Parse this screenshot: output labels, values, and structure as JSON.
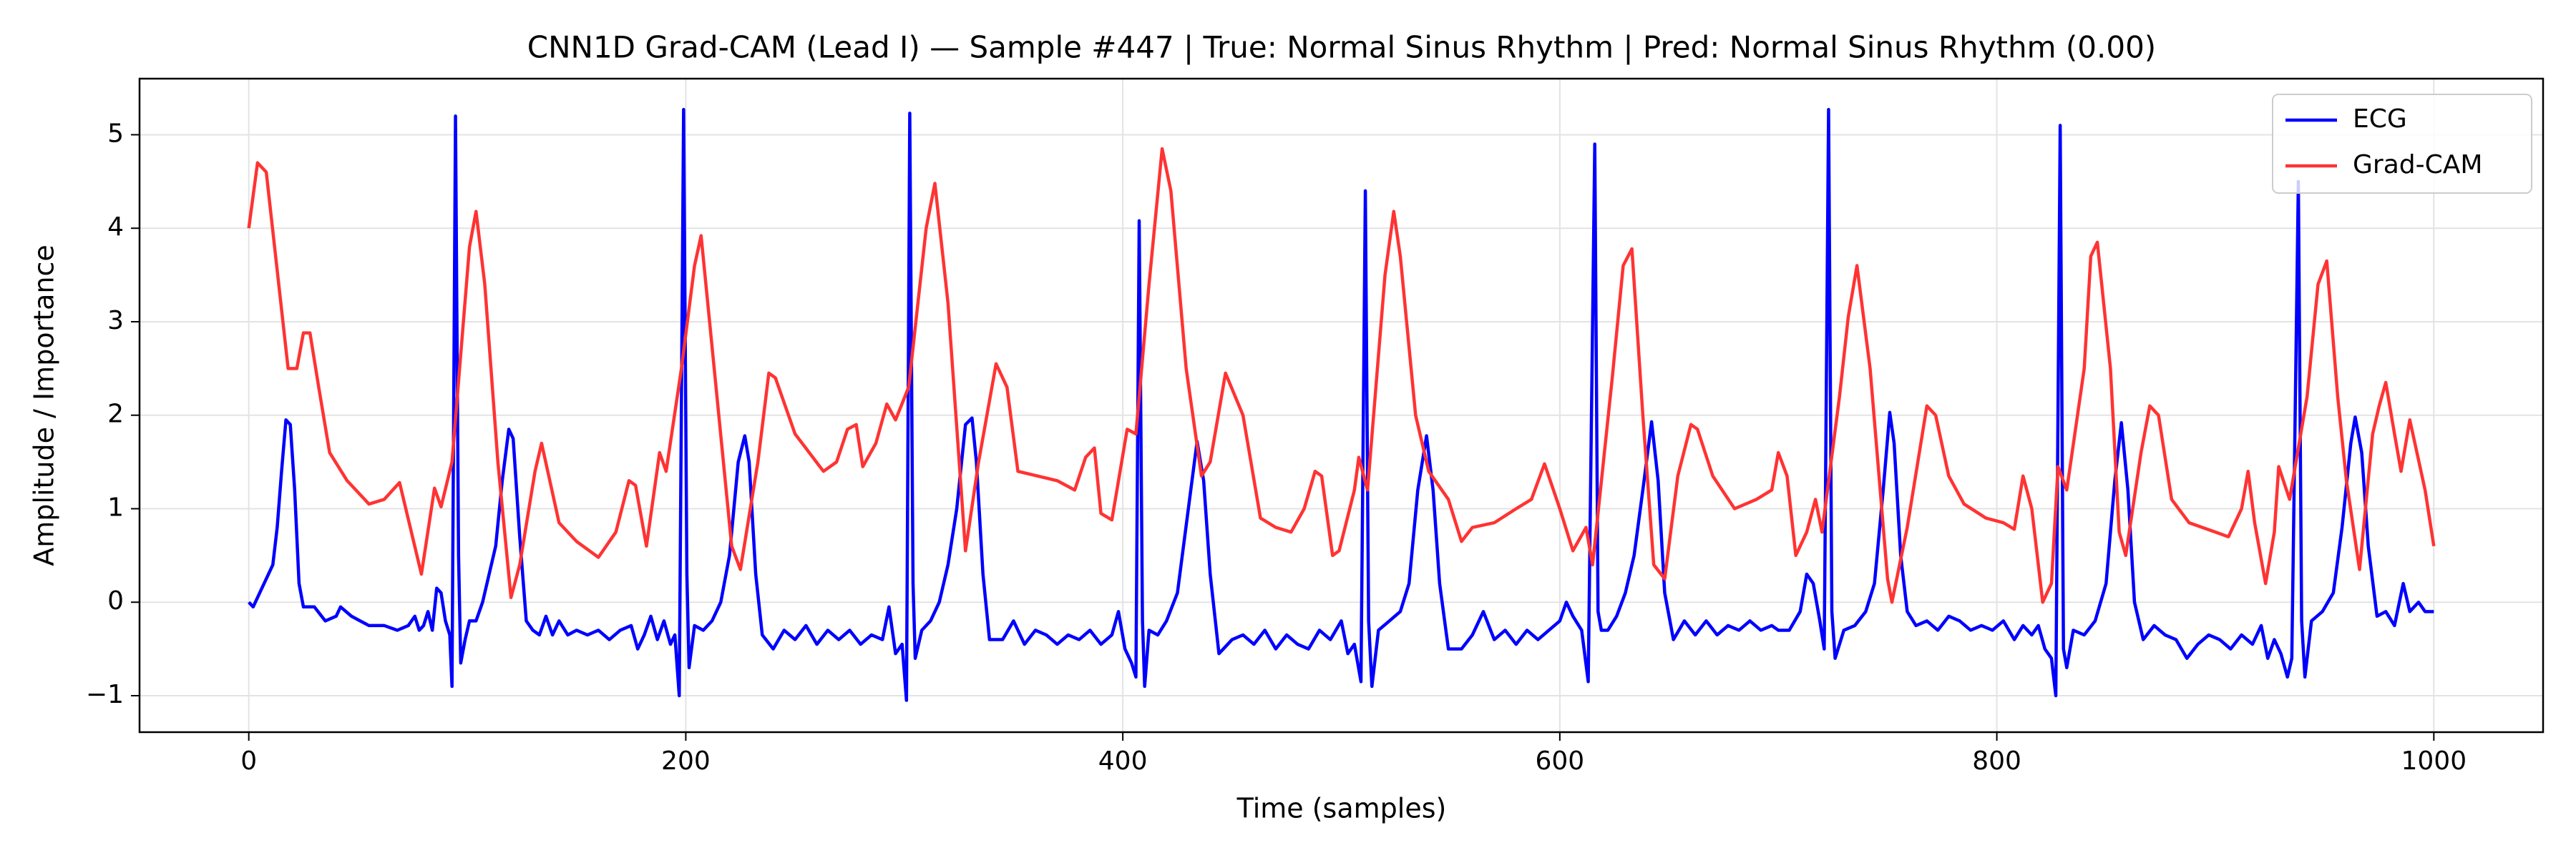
{
  "chart_data": {
    "type": "line",
    "title": "CNN1D Grad-CAM (Lead I) — Sample #447 | True: Normal Sinus Rhythm | Pred: Normal Sinus Rhythm (0.00)",
    "xlabel": "Time (samples)",
    "ylabel": "Amplitude / Importance",
    "xlim": [
      -50,
      1050
    ],
    "ylim": [
      -1.39,
      5.6
    ],
    "xticks": [
      0,
      200,
      400,
      600,
      800,
      1000
    ],
    "yticks": [
      {
        "value": -1,
        "label": "−1"
      },
      0,
      1,
      2,
      3,
      4,
      5
    ],
    "grid": true,
    "legend": "upper right",
    "series": [
      {
        "name": "ECG",
        "color": "#0000ff",
        "x": [
          0,
          2,
          5,
          8,
          11,
          13,
          15,
          17,
          19,
          21,
          23,
          25,
          30,
          35,
          40,
          42,
          47,
          55,
          62,
          68,
          73,
          76,
          78,
          80,
          82,
          84,
          86,
          88,
          90,
          92,
          93,
          94.6,
          96,
          97,
          99,
          101,
          104,
          107,
          110,
          113,
          116,
          119,
          121,
          124,
          127,
          130,
          133,
          136,
          139,
          142,
          146,
          150,
          155,
          160,
          165,
          170,
          175,
          178,
          181,
          184,
          187,
          190,
          193,
          195,
          197,
          199,
          200.5,
          201.5,
          204,
          208,
          212,
          216,
          220,
          224,
          227,
          229,
          232,
          235,
          240,
          245,
          250,
          255,
          260,
          265,
          270,
          275,
          280,
          285,
          290,
          293,
          296,
          299,
          301,
          302.5,
          304,
          305,
          308,
          312,
          316,
          320,
          324,
          328,
          331,
          333,
          336,
          339,
          345,
          350,
          355,
          360,
          365,
          370,
          375,
          380,
          385,
          390,
          395,
          398,
          401,
          404,
          406,
          407.5,
          409,
          410,
          412,
          416,
          420,
          425,
          430,
          434,
          437,
          440,
          444,
          450,
          455,
          460,
          465,
          470,
          475,
          480,
          485,
          490,
          495,
          500,
          503,
          506,
          509,
          511,
          512.5,
          514,
          517,
          522,
          527,
          531,
          535,
          539,
          542,
          545,
          549,
          555,
          560,
          565,
          570,
          575,
          580,
          585,
          590,
          595,
          600,
          603,
          606,
          610,
          613,
          616,
          617.5,
          619,
          622,
          626,
          630,
          634,
          638,
          642,
          645,
          648,
          652,
          657,
          662,
          667,
          672,
          677,
          682,
          687,
          692,
          697,
          700,
          705,
          710,
          713,
          716,
          719,
          721,
          723,
          724.5,
          726,
          730,
          735,
          740,
          744,
          748,
          751,
          753,
          756,
          759,
          763,
          768,
          773,
          778,
          783,
          788,
          793,
          798,
          803,
          808,
          812,
          816,
          819,
          822,
          825,
          827,
          829,
          830.5,
          832,
          835,
          840,
          845,
          850,
          854,
          857,
          860,
          863,
          867,
          872,
          877,
          882,
          887,
          892,
          897,
          902,
          907,
          912,
          917,
          921,
          924,
          927,
          930,
          933,
          935,
          938,
          939.5,
          941,
          944,
          949,
          954,
          958,
          962,
          964,
          967,
          970,
          974,
          978,
          982,
          986,
          989,
          993,
          996,
          1000
        ],
        "values": [
          0,
          -0.05,
          0.1,
          0.25,
          0.4,
          0.8,
          1.4,
          1.95,
          1.9,
          1.2,
          0.2,
          -0.05,
          -0.05,
          -0.2,
          -0.15,
          -0.05,
          -0.15,
          -0.25,
          -0.25,
          -0.3,
          -0.25,
          -0.15,
          -0.3,
          -0.25,
          -0.1,
          -0.3,
          0.15,
          0.1,
          -0.2,
          -0.35,
          -0.9,
          5.2,
          0.5,
          -0.65,
          -0.4,
          -0.2,
          -0.2,
          0,
          0.3,
          0.6,
          1.3,
          1.85,
          1.75,
          0.7,
          -0.2,
          -0.3,
          -0.35,
          -0.15,
          -0.35,
          -0.2,
          -0.35,
          -0.3,
          -0.35,
          -0.3,
          -0.4,
          -0.3,
          -0.25,
          -0.5,
          -0.35,
          -0.15,
          -0.4,
          -0.2,
          -0.45,
          -0.35,
          -1.0,
          5.27,
          0.3,
          -0.7,
          -0.25,
          -0.3,
          -0.2,
          0,
          0.5,
          1.5,
          1.78,
          1.5,
          0.3,
          -0.35,
          -0.5,
          -0.3,
          -0.4,
          -0.25,
          -0.45,
          -0.3,
          -0.4,
          -0.3,
          -0.45,
          -0.35,
          -0.4,
          -0.05,
          -0.55,
          -0.45,
          -1.05,
          5.23,
          0.2,
          -0.6,
          -0.3,
          -0.2,
          0,
          0.4,
          1.0,
          1.9,
          1.97,
          1.5,
          0.3,
          -0.4,
          -0.4,
          -0.2,
          -0.45,
          -0.3,
          -0.35,
          -0.45,
          -0.35,
          -0.4,
          -0.3,
          -0.45,
          -0.35,
          -0.1,
          -0.5,
          -0.65,
          -0.8,
          4.08,
          -0.2,
          -0.9,
          -0.3,
          -0.35,
          -0.2,
          0.1,
          1.0,
          1.72,
          1.3,
          0.3,
          -0.55,
          -0.4,
          -0.35,
          -0.45,
          -0.3,
          -0.5,
          -0.35,
          -0.45,
          -0.5,
          -0.3,
          -0.4,
          -0.2,
          -0.55,
          -0.45,
          -0.85,
          4.4,
          -0.2,
          -0.9,
          -0.3,
          -0.2,
          -0.1,
          0.2,
          1.2,
          1.78,
          1.2,
          0.2,
          -0.5,
          -0.5,
          -0.35,
          -0.1,
          -0.4,
          -0.3,
          -0.45,
          -0.3,
          -0.4,
          -0.3,
          -0.2,
          0,
          -0.15,
          -0.3,
          -0.85,
          4.9,
          -0.1,
          -0.3,
          -0.3,
          -0.15,
          0.1,
          0.5,
          1.2,
          1.93,
          1.3,
          0.1,
          -0.4,
          -0.2,
          -0.35,
          -0.2,
          -0.35,
          -0.25,
          -0.3,
          -0.2,
          -0.3,
          -0.25,
          -0.3,
          -0.3,
          -0.1,
          0.3,
          0.2,
          -0.2,
          -0.5,
          5.27,
          -0.1,
          -0.6,
          -0.3,
          -0.25,
          -0.1,
          0.2,
          1.2,
          2.03,
          1.7,
          0.5,
          -0.1,
          -0.25,
          -0.2,
          -0.3,
          -0.15,
          -0.2,
          -0.3,
          -0.25,
          -0.3,
          -0.2,
          -0.4,
          -0.25,
          -0.35,
          -0.25,
          -0.5,
          -0.6,
          -1.0,
          5.1,
          -0.5,
          -0.7,
          -0.3,
          -0.35,
          -0.2,
          0.2,
          1.3,
          1.92,
          1.2,
          0,
          -0.4,
          -0.25,
          -0.35,
          -0.4,
          -0.6,
          -0.45,
          -0.35,
          -0.4,
          -0.5,
          -0.35,
          -0.45,
          -0.25,
          -0.6,
          -0.4,
          -0.55,
          -0.8,
          -0.6,
          4.5,
          -0.2,
          -0.8,
          -0.2,
          -0.1,
          0.1,
          0.8,
          1.7,
          1.98,
          1.6,
          0.6,
          -0.15,
          -0.1,
          -0.25,
          0.2,
          -0.1,
          0,
          -0.1,
          -0.1
        ]
      },
      {
        "name": "Grad-CAM",
        "color": "#ff3333",
        "x": [
          0,
          4,
          8,
          18,
          22,
          25,
          28,
          32,
          37,
          45,
          55,
          62,
          69,
          79,
          85,
          88,
          93,
          101,
          104,
          108,
          114,
          120,
          124,
          131,
          134,
          142,
          150,
          160,
          168,
          174,
          177,
          182,
          188,
          191,
          198,
          204,
          207,
          213,
          221,
          225,
          233,
          238,
          241,
          250,
          263,
          269,
          274,
          278,
          281,
          287,
          292,
          296,
          302,
          310,
          314,
          320,
          328,
          334,
          342,
          347,
          352,
          370,
          378,
          383,
          387,
          390,
          395,
          402,
          406,
          412,
          418,
          422,
          429,
          436,
          440,
          447,
          455,
          463,
          470,
          477,
          483,
          488,
          491,
          496,
          499,
          506,
          508,
          512,
          520,
          524,
          527,
          534,
          540,
          549,
          555,
          560,
          570,
          580,
          587,
          593,
          600,
          606,
          612,
          615,
          624,
          629,
          633,
          638,
          643,
          648,
          654,
          660,
          663,
          670,
          680,
          690,
          697,
          700,
          704,
          708,
          713,
          717,
          720,
          728,
          732,
          736,
          742,
          750,
          752,
          759,
          768,
          772,
          778,
          785,
          795,
          803,
          808,
          812,
          816,
          821,
          825,
          828,
          832,
          840,
          843,
          846,
          852,
          856,
          859,
          866,
          870,
          874,
          880,
          888,
          900,
          906,
          912,
          915,
          918,
          923,
          927,
          929,
          934,
          942,
          947,
          951,
          956,
          960,
          966,
          972,
          975,
          978,
          982,
          985,
          989,
          996,
          1000
        ],
        "values": [
          4.0,
          4.7,
          4.6,
          2.5,
          2.5,
          2.88,
          2.88,
          2.3,
          1.6,
          1.3,
          1.05,
          1.1,
          1.28,
          0.3,
          1.22,
          1.02,
          1.5,
          3.8,
          4.18,
          3.4,
          1.5,
          0.05,
          0.4,
          1.4,
          1.7,
          0.85,
          0.65,
          0.48,
          0.75,
          1.3,
          1.25,
          0.6,
          1.6,
          1.4,
          2.5,
          3.6,
          3.92,
          2.5,
          0.6,
          0.35,
          1.5,
          2.45,
          2.4,
          1.8,
          1.4,
          1.5,
          1.85,
          1.9,
          1.45,
          1.7,
          2.12,
          1.95,
          2.3,
          4.0,
          4.48,
          3.2,
          0.55,
          1.5,
          2.55,
          2.3,
          1.4,
          1.3,
          1.2,
          1.55,
          1.65,
          0.95,
          0.88,
          1.85,
          1.8,
          3.4,
          4.85,
          4.4,
          2.5,
          1.35,
          1.5,
          2.45,
          2.0,
          0.9,
          0.8,
          0.75,
          1.0,
          1.4,
          1.35,
          0.5,
          0.55,
          1.2,
          1.55,
          1.2,
          3.5,
          4.18,
          3.7,
          2.0,
          1.4,
          1.1,
          0.65,
          0.8,
          0.85,
          1.0,
          1.1,
          1.48,
          1.0,
          0.55,
          0.8,
          0.4,
          2.4,
          3.6,
          3.78,
          2.0,
          0.4,
          0.25,
          1.35,
          1.9,
          1.85,
          1.35,
          1.0,
          1.1,
          1.2,
          1.6,
          1.35,
          0.5,
          0.75,
          1.1,
          0.75,
          2.2,
          3.05,
          3.6,
          2.5,
          0.25,
          0,
          0.8,
          2.1,
          2.0,
          1.35,
          1.05,
          0.9,
          0.85,
          0.78,
          1.35,
          1.0,
          0,
          0.2,
          1.45,
          1.2,
          2.5,
          3.7,
          3.85,
          2.5,
          0.75,
          0.5,
          1.6,
          2.1,
          2.0,
          1.1,
          0.85,
          0.75,
          0.7,
          1.0,
          1.4,
          0.85,
          0.2,
          0.75,
          1.45,
          1.1,
          2.2,
          3.4,
          3.65,
          2.2,
          1.3,
          0.35,
          1.8,
          2.1,
          2.35,
          1.8,
          1.4,
          1.95,
          1.2,
          0.6
        ]
      }
    ]
  }
}
